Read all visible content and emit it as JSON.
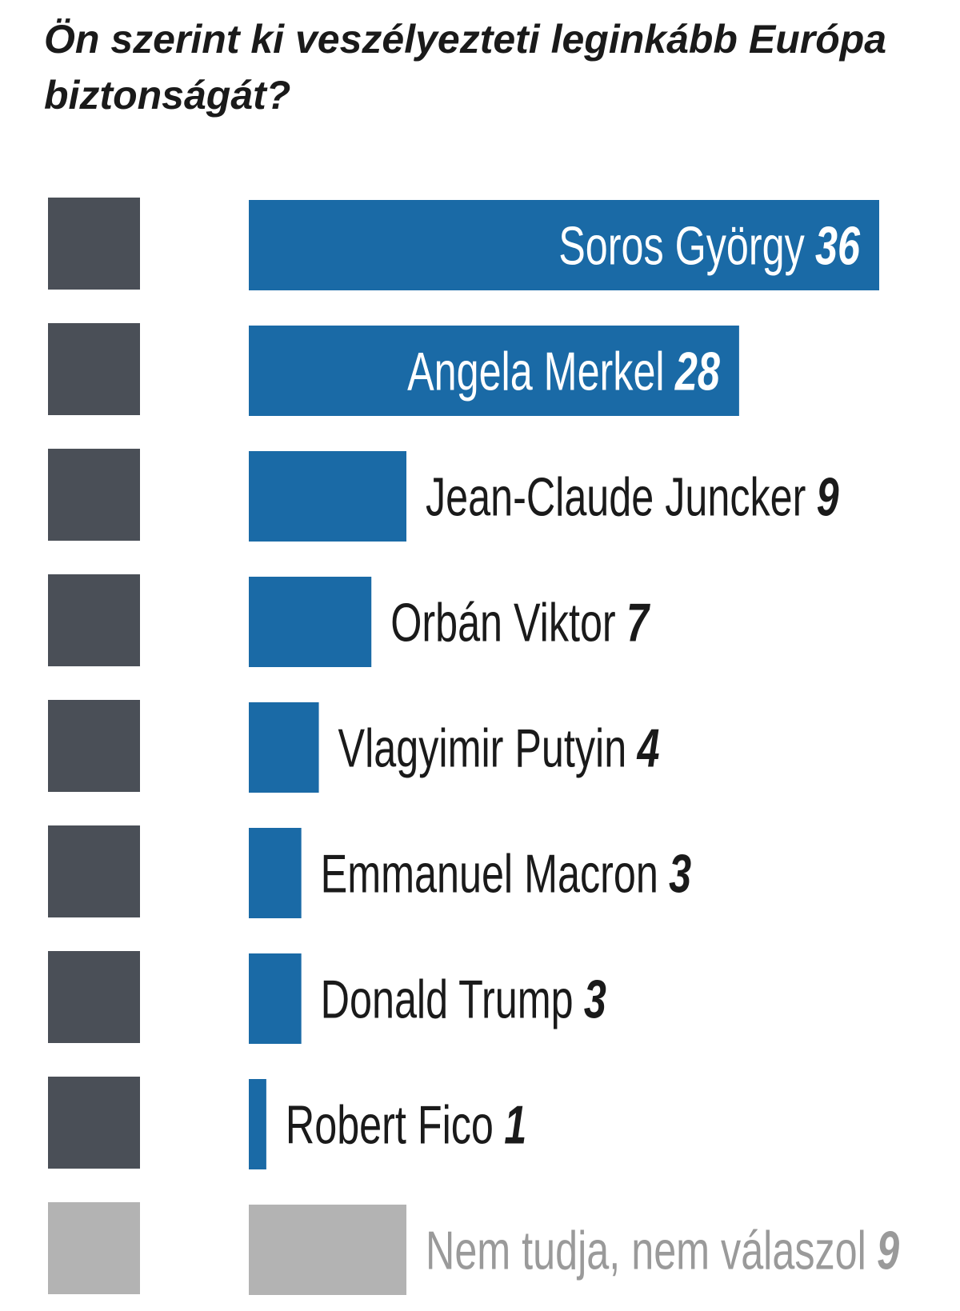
{
  "chart_data": {
    "type": "bar",
    "orientation": "horizontal",
    "title": "Ön szerint ki veszélyezteti leginkább Európa biztonságát?",
    "categories": [
      "Soros György",
      "Angela Merkel",
      "Jean-Claude Juncker",
      "Orbán Viktor",
      "Vlagyimir Putyin",
      "Emmanuel Macron",
      "Donald Trump",
      "Robert Fico",
      "Nem tudja, nem válaszol"
    ],
    "values": [
      36,
      28,
      9,
      7,
      4,
      3,
      3,
      1,
      9
    ],
    "colors": [
      "#1a6aa6",
      "#1a6aa6",
      "#1a6aa6",
      "#1a6aa6",
      "#1a6aa6",
      "#1a6aa6",
      "#1a6aa6",
      "#1a6aa6",
      "#b3b3b3"
    ]
  }
}
